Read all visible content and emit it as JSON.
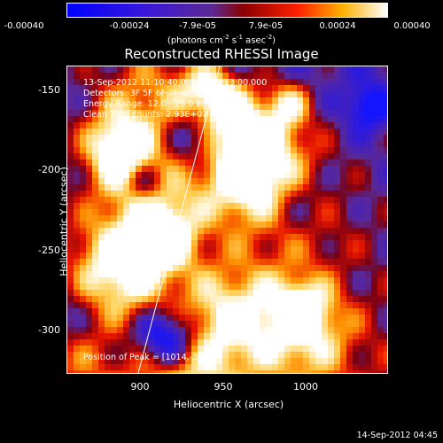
{
  "colorbar": {
    "ticks": [
      "-0.00040",
      "-0.00024",
      "-7.9e-05",
      "7.9e-05",
      "0.00024",
      "0.00040"
    ],
    "units_prefix": "(photons cm",
    "units_sup1": "-2",
    "units_s": " s",
    "units_sup2": "-1",
    "units_asec": " asec",
    "units_sup3": "-2",
    "units_suffix": ")"
  },
  "title": "Reconstructed RHESSI Image",
  "info": {
    "time_range": "13-Sep-2012 11:10:40.000 to 11:13:00.000",
    "detectors": "Detectors: 3F 5F 6F 7F 8F 9F, Att 0",
    "energy": "Energy Range: 12.0 - 25.0 keV",
    "clean": "Clean    Total counts: 2.93E+03",
    "peak": "Position of Peak = [1014,-318]"
  },
  "axes": {
    "xlabel": "Heliocentric X (arcsec)",
    "ylabel": "Heliocentric Y (arcsec)",
    "xticks": [
      "900",
      "950",
      "1000"
    ],
    "yticks": [
      "-150",
      "-200",
      "-250",
      "-300"
    ],
    "xlim": [
      860,
      1040
    ],
    "ylim": [
      -325,
      -140
    ]
  },
  "timestamp": "14-Sep-2012 04:45",
  "colors": {
    "low": "#0000ff",
    "zero": "#5a2a96",
    "mid": "#ff1a00",
    "high": "#ffffff"
  }
}
